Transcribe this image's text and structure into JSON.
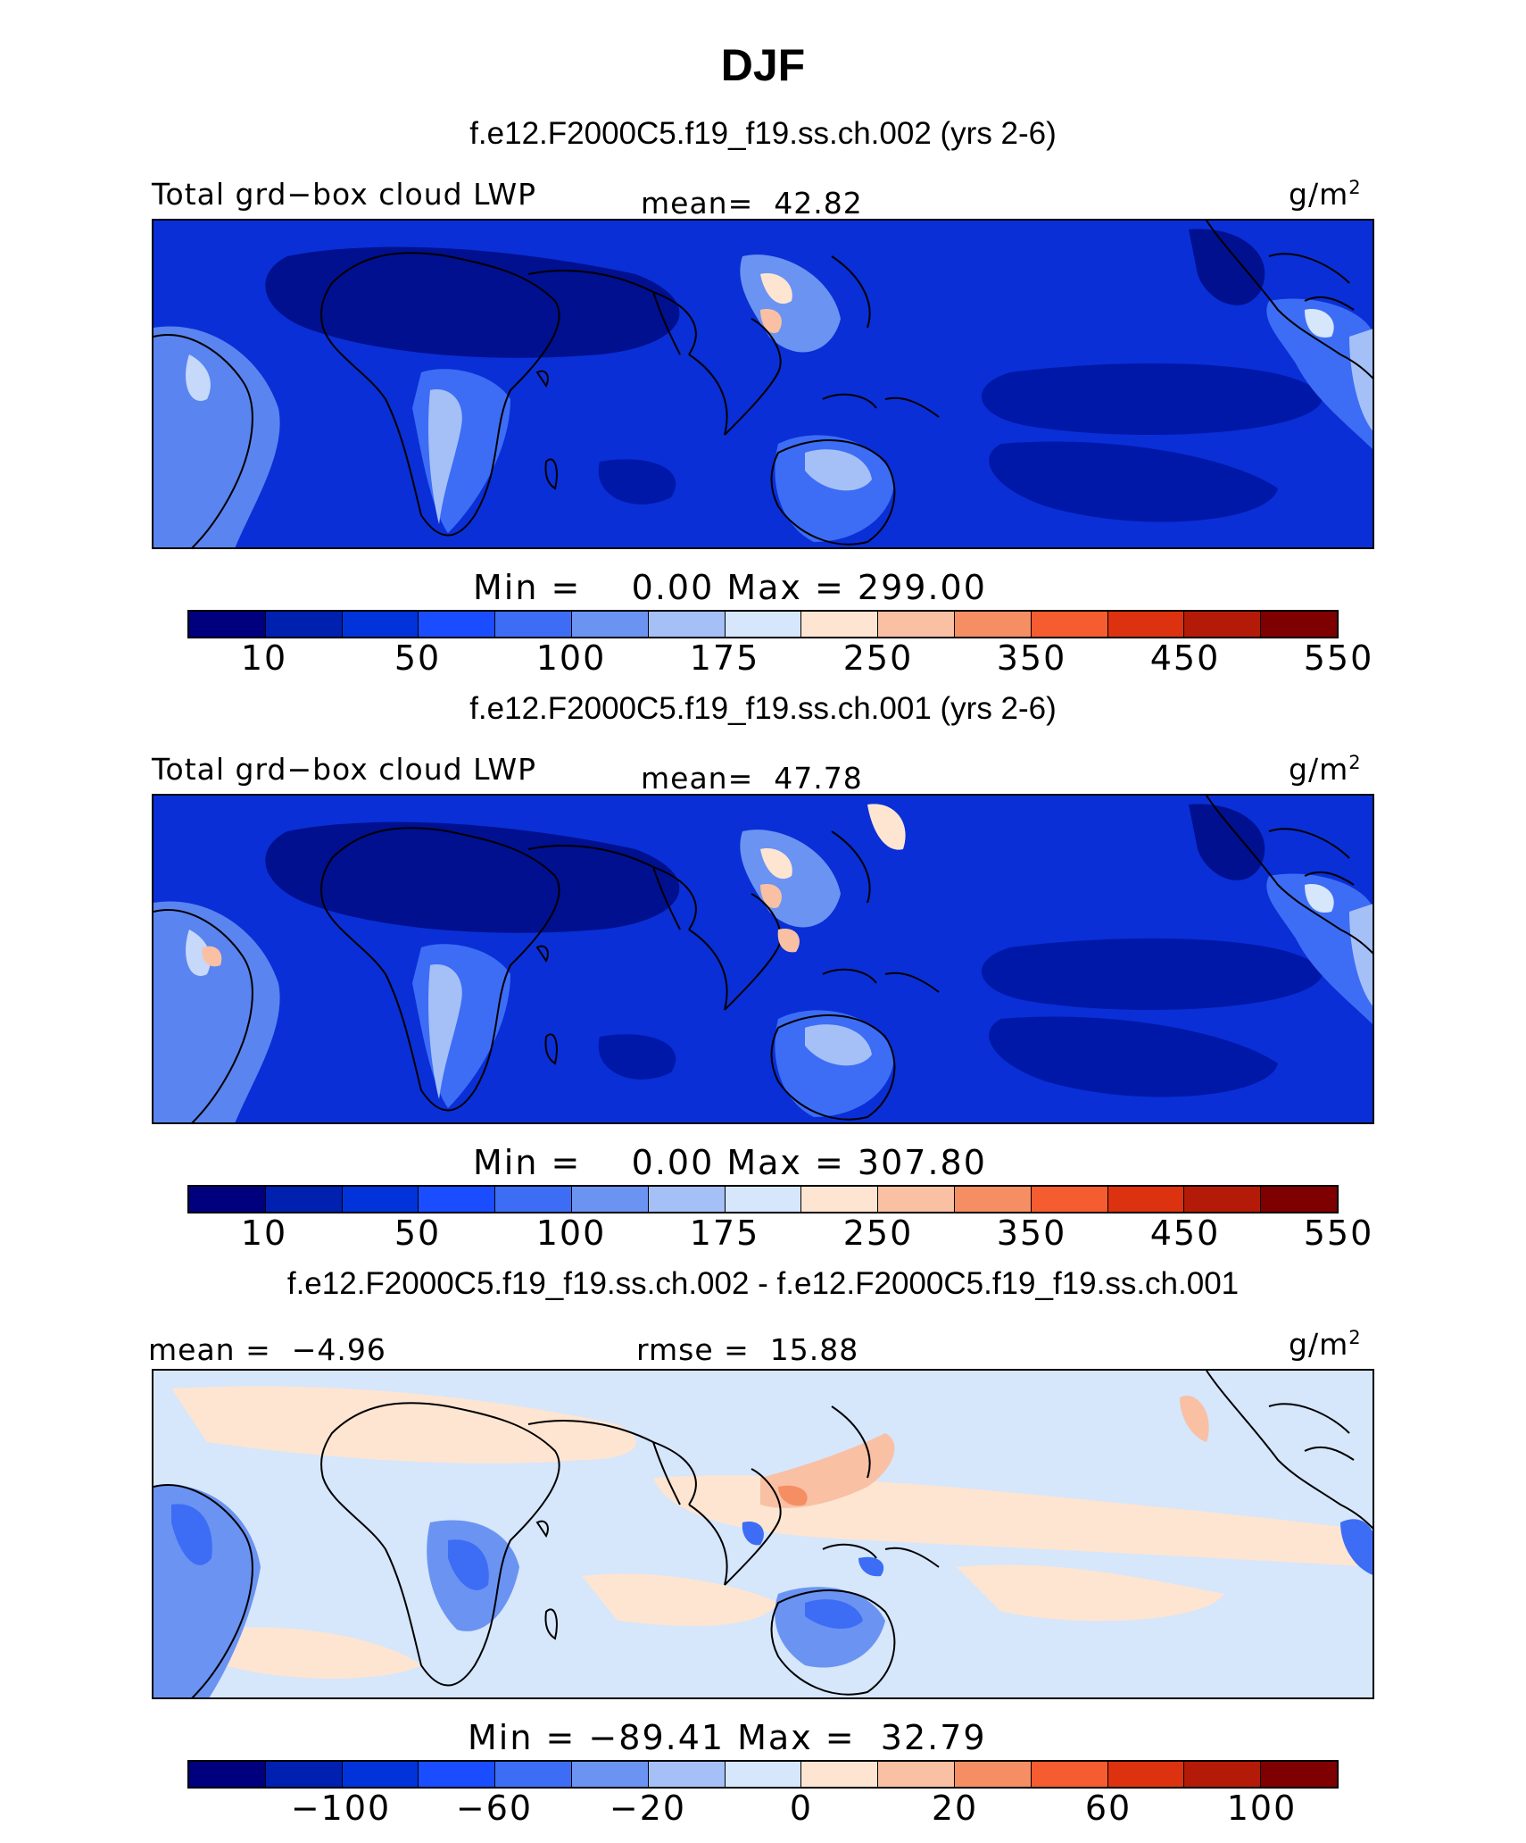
{
  "title": "DJF",
  "panels": [
    {
      "case_title": "f.e12.F2000C5.f19_f19.ss.ch.002 (yrs 2-6)",
      "left_label": "Total grd−box cloud LWP",
      "center_label": "mean=  42.82",
      "unit_base": "g/m",
      "unit_sup": "2",
      "minmax": "Min =    0.00 Max = 299.00",
      "ticks": [
        "10",
        "50",
        "100",
        "175",
        "250",
        "350",
        "450",
        "550"
      ],
      "type": "absolute"
    },
    {
      "case_title": "f.e12.F2000C5.f19_f19.ss.ch.001 (yrs 2-6)",
      "left_label": "Total grd−box cloud LWP",
      "center_label": "mean=  47.78",
      "unit_base": "g/m",
      "unit_sup": "2",
      "minmax": "Min =    0.00 Max = 307.80",
      "ticks": [
        "10",
        "50",
        "100",
        "175",
        "250",
        "350",
        "450",
        "550"
      ],
      "type": "absolute"
    },
    {
      "case_title": "f.e12.F2000C5.f19_f19.ss.ch.002 - f.e12.F2000C5.f19_f19.ss.ch.001",
      "left_label": "mean =  −4.96",
      "center_label": "rmse =  15.88",
      "unit_base": "g/m",
      "unit_sup": "2",
      "minmax": "Min = −89.41 Max =  32.79",
      "ticks": [
        "−100",
        "−60",
        "−20",
        "0",
        "20",
        "60",
        "100"
      ],
      "type": "difference"
    }
  ],
  "colorbar_colors": [
    "#00007f",
    "#0020b0",
    "#0033d9",
    "#1a4dff",
    "#3d6df5",
    "#6b93f2",
    "#a5c0f7",
    "#d6e6fb",
    "#fde5d2",
    "#f9c0a3",
    "#f68e64",
    "#f55c30",
    "#dd3210",
    "#b41a08",
    "#7f0000"
  ]
}
